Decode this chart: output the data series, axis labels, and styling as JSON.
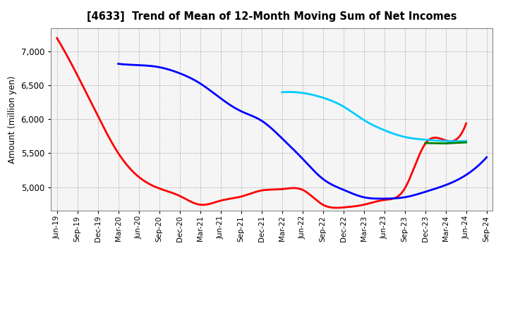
{
  "title": "[4633]  Trend of Mean of 12-Month Moving Sum of Net Incomes",
  "ylabel": "Amount (million yen)",
  "background_color": "#ffffff",
  "plot_bg_color": "#f5f5f5",
  "grid_color": "#aaaaaa",
  "ylim": [
    4650,
    7350
  ],
  "yticks": [
    5000,
    5500,
    6000,
    6500,
    7000
  ],
  "x_labels": [
    "Jun-19",
    "Sep-19",
    "Dec-19",
    "Mar-20",
    "Jun-20",
    "Sep-20",
    "Dec-20",
    "Mar-21",
    "Jun-21",
    "Sep-21",
    "Dec-21",
    "Mar-22",
    "Jun-22",
    "Sep-22",
    "Dec-22",
    "Mar-23",
    "Jun-23",
    "Sep-23",
    "Dec-23",
    "Mar-24",
    "Jun-24",
    "Sep-24"
  ],
  "series": {
    "3 Years": {
      "color": "#ff0000",
      "data": {
        "Jun-19": 7200,
        "Sep-19": 6650,
        "Dec-19": 6050,
        "Mar-20": 5500,
        "Jun-20": 5150,
        "Sep-20": 4980,
        "Dec-20": 4870,
        "Mar-21": 4740,
        "Jun-21": 4800,
        "Sep-21": 4860,
        "Dec-21": 4950,
        "Mar-22": 4970,
        "Jun-22": 4960,
        "Sep-22": 4740,
        "Dec-22": 4700,
        "Mar-23": 4740,
        "Jun-23": 4810,
        "Sep-23": 4980,
        "Dec-23": 5640,
        "Mar-24": 5690,
        "Jun-24": 5940
      }
    },
    "5 Years": {
      "color": "#0000ff",
      "data": {
        "Mar-20": 6820,
        "Jun-20": 6800,
        "Sep-20": 6770,
        "Dec-20": 6680,
        "Mar-21": 6530,
        "Jun-21": 6310,
        "Sep-21": 6120,
        "Dec-21": 5980,
        "Mar-22": 5720,
        "Jun-22": 5420,
        "Sep-22": 5120,
        "Dec-22": 4960,
        "Mar-23": 4850,
        "Jun-23": 4830,
        "Sep-23": 4850,
        "Dec-23": 4930,
        "Mar-24": 5030,
        "Jun-24": 5180,
        "Sep-24": 5440
      }
    },
    "7 Years": {
      "color": "#00ccff",
      "data": {
        "Mar-22": 6400,
        "Jun-22": 6390,
        "Sep-22": 6320,
        "Dec-22": 6190,
        "Mar-23": 5990,
        "Jun-23": 5840,
        "Sep-23": 5740,
        "Dec-23": 5700,
        "Mar-24": 5680,
        "Jun-24": 5680
      }
    },
    "10 Years": {
      "color": "#008000",
      "data": {
        "Dec-23": 5650,
        "Mar-24": 5645,
        "Jun-24": 5660
      }
    }
  }
}
